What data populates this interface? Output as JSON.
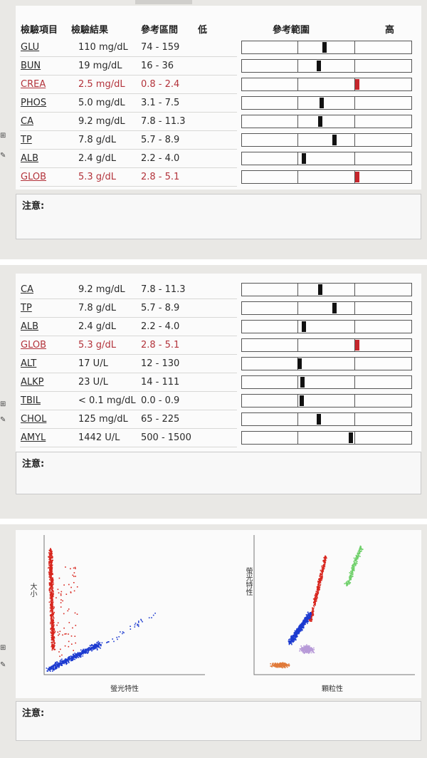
{
  "panel1": {
    "headers": {
      "item": "檢驗項目",
      "result": "檢驗結果",
      "ref": "參考區間",
      "low": "低",
      "range": "參考範圍",
      "high": "高"
    },
    "rows": [
      {
        "name": "GLU",
        "result": "110 mg/dL",
        "ref": "74 - 159",
        "level": 0.47,
        "abnormal": false
      },
      {
        "name": "BUN",
        "result": "19 mg/dL",
        "ref": "16 - 36",
        "level": 0.38,
        "abnormal": false
      },
      {
        "name": "CREA",
        "result": "2.5 mg/dL",
        "ref": "0.8 - 2.4",
        "level": 1.05,
        "abnormal": true
      },
      {
        "name": "PHOS",
        "result": "5.0 mg/dL",
        "ref": "3.1 - 7.5",
        "level": 0.43,
        "abnormal": false
      },
      {
        "name": "CA",
        "result": "9.2 mg/dL",
        "ref": "7.8 - 11.3",
        "level": 0.4,
        "abnormal": false
      },
      {
        "name": "TP",
        "result": "7.8 g/dL",
        "ref": "5.7 - 8.9",
        "level": 0.65,
        "abnormal": false
      },
      {
        "name": "ALB",
        "result": "2.4 g/dL",
        "ref": "2.2 - 4.0",
        "level": 0.11,
        "abnormal": false
      },
      {
        "name": "GLOB",
        "result": "5.3 g/dL",
        "ref": "2.8 - 5.1",
        "level": 1.05,
        "abnormal": true
      }
    ],
    "note_label": "注意:"
  },
  "panel2": {
    "rows": [
      {
        "name": "CA",
        "result": "9.2 mg/dL",
        "ref": "7.8 - 11.3",
        "level": 0.4,
        "abnormal": false
      },
      {
        "name": "TP",
        "result": "7.8 g/dL",
        "ref": "5.7 - 8.9",
        "level": 0.65,
        "abnormal": false
      },
      {
        "name": "ALB",
        "result": "2.4 g/dL",
        "ref": "2.2 - 4.0",
        "level": 0.11,
        "abnormal": false
      },
      {
        "name": "GLOB",
        "result": "5.3 g/dL",
        "ref": "2.8 - 5.1",
        "level": 1.05,
        "abnormal": true
      },
      {
        "name": "ALT",
        "result": "17 U/L",
        "ref": "12 - 130",
        "level": 0.04,
        "abnormal": false
      },
      {
        "name": "ALKP",
        "result": "23 U/L",
        "ref": "14 - 111",
        "level": 0.09,
        "abnormal": false
      },
      {
        "name": "TBIL",
        "result": "< 0.1 mg/dL",
        "ref": "0.0 - 0.9",
        "level": 0.07,
        "abnormal": false
      },
      {
        "name": "CHOL",
        "result": "125 mg/dL",
        "ref": "65 - 225",
        "level": 0.37,
        "abnormal": false
      },
      {
        "name": "AMYL",
        "result": "1442 U/L",
        "ref": "500 - 1500",
        "level": 0.94,
        "abnormal": false
      }
    ],
    "note_label": "注意:"
  },
  "panel3": {
    "plot1": {
      "y_label": "大小",
      "x_label": "螢光特性"
    },
    "plot2": {
      "y_label": "螢光特性",
      "x_label": "顆粒性"
    },
    "note_label": "注意:",
    "colors": {
      "rbc": "#d8261e",
      "wbc": "#1c3ad0",
      "green": "#6fd06a",
      "purple": "#b79ad8",
      "orange": "#e07a3a"
    }
  }
}
